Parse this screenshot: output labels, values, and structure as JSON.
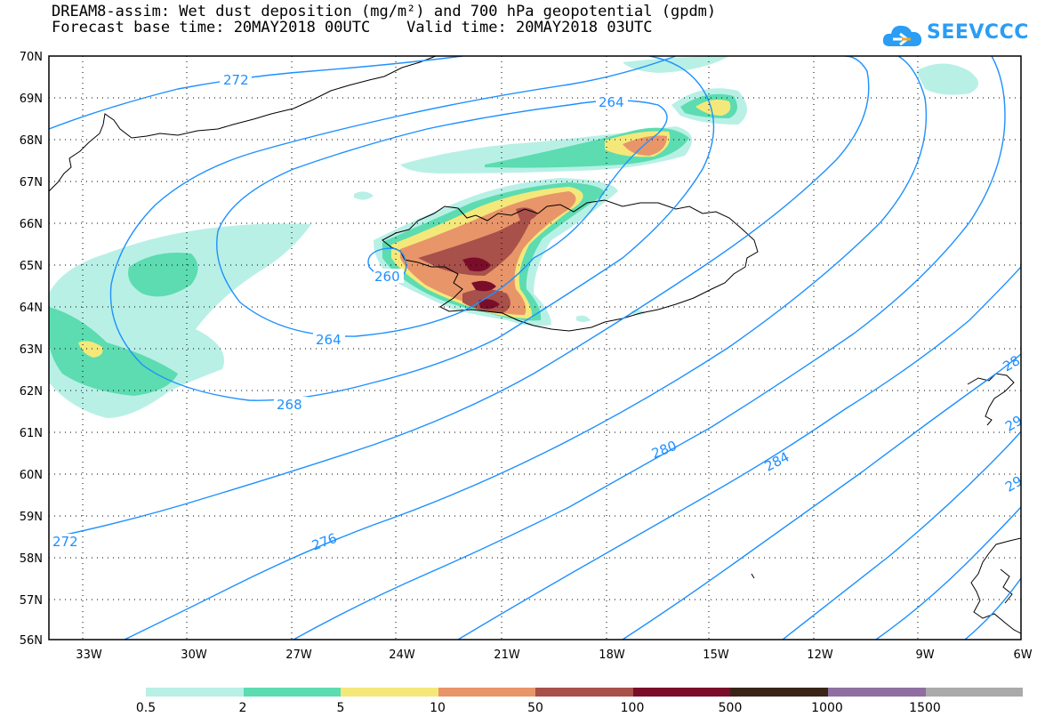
{
  "title": {
    "line1": "DREAM8-assim: Wet dust deposition (mg/m²) and 700 hPa geopotential (gpdm)",
    "line2": "Forecast base time: 20MAY2018 00UTC    Valid time: 20MAY2018 03UTC"
  },
  "logo": {
    "text": "SEEVCCC",
    "icon": "cloud-icon",
    "color": "#2a9df4"
  },
  "map": {
    "lat_labels": [
      "70N",
      "69N",
      "68N",
      "67N",
      "66N",
      "65N",
      "64N",
      "63N",
      "62N",
      "61N",
      "60N",
      "59N",
      "58N",
      "57N",
      "56N"
    ],
    "lon_labels": [
      "33W",
      "30W",
      "27W",
      "24W",
      "21W",
      "18W",
      "15W",
      "12W",
      "9W",
      "6W"
    ],
    "contour_labels": [
      "272",
      "264",
      "260",
      "264",
      "268",
      "272",
      "276",
      "280",
      "284",
      "28",
      "29",
      "29"
    ],
    "contour_color": "#1e90ff"
  },
  "legend": {
    "labels": [
      "0.5",
      "2",
      "5",
      "10",
      "50",
      "100",
      "500",
      "1000",
      "1500"
    ],
    "colors": [
      "#b8f0e6",
      "#5cdcb0",
      "#f5e87a",
      "#e8956a",
      "#a8504a",
      "#7a0e2a",
      "#3a2418",
      "#8e6fa0",
      "#aaaaaa"
    ]
  }
}
